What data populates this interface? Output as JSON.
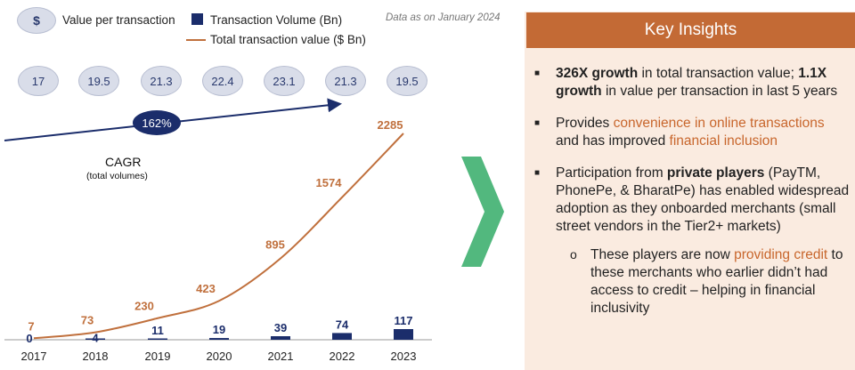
{
  "legend": {
    "dollar_symbol": "$",
    "value_per_transaction": "Value per transaction",
    "volume": "Transaction Volume (Bn)",
    "total_value": "Total transaction value  ($ Bn)",
    "note": "Data as  on January 2024"
  },
  "cagr": {
    "value": "162%",
    "title": "CAGR",
    "subtitle": "(total volumes)"
  },
  "colors": {
    "value_line": "#c0703d",
    "volume_bar": "#1b2d6b",
    "header": "#c36a35",
    "chevron": "#52b87e"
  },
  "chart_data": {
    "type": "bar+line",
    "categories": [
      "2017",
      "2018",
      "2019",
      "2020",
      "2021",
      "2022",
      "2023"
    ],
    "value_per_transaction": [
      "17",
      "19.5",
      "21.3",
      "22.4",
      "23.1",
      "21.3",
      "19.5"
    ],
    "series": [
      {
        "name": "Transaction Volume (Bn)",
        "type": "bar",
        "values": [
          0,
          4,
          11,
          19,
          39,
          74,
          117
        ]
      },
      {
        "name": "Total transaction value  ($ Bn)",
        "type": "line",
        "values": [
          7,
          73,
          230,
          423,
          895,
          1574,
          2285
        ]
      }
    ]
  },
  "insights": {
    "header": "Key Insights",
    "b1_strong1": "326X growth",
    "b1_text1": " in total transaction value; ",
    "b1_strong2": "1.1X growth",
    "b1_text2": " in value per transaction in last 5 years",
    "b2_text1": "Provides ",
    "b2_hl1": "convenience in online transactions",
    "b2_text2": " and has improved ",
    "b2_hl2": "financial inclusion",
    "b3_text1": "Participation from ",
    "b3_strong": "private players",
    "b3_text2": " (PayTM, PhonePe, & BharatPe) has enabled widespread adoption as they onboarded merchants (small street vendors in the Tier2+ markets)",
    "sub_text1": "These players are now ",
    "sub_hl": "providing credit",
    "sub_text2": " to these merchants who earlier didn’t had access to credit – helping in financial inclusivity",
    "bullet_mark": "■",
    "sub_mark": "o"
  }
}
